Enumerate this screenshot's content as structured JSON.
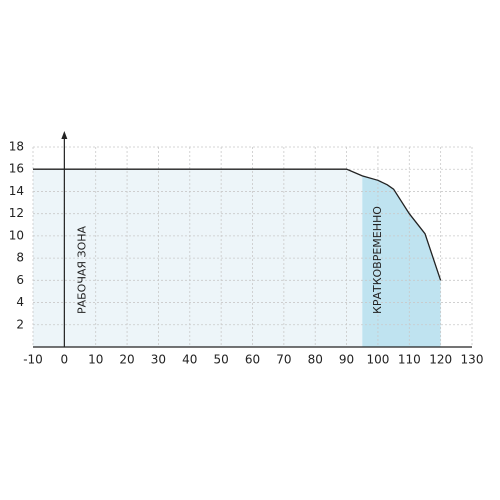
{
  "chart_data": {
    "type": "line",
    "x": [
      -10,
      90,
      95,
      100,
      103,
      105,
      110,
      115,
      120
    ],
    "values": [
      16,
      16,
      15.4,
      15,
      14.6,
      14.2,
      12,
      10.2,
      6
    ],
    "color": "#222222",
    "zones": [
      {
        "label": "РАБОЧАЯ ЗОНА",
        "from": -10,
        "to": 95,
        "color": "#edf5f9"
      },
      {
        "label": "КРАТКОВРЕМЕННО",
        "from": 95,
        "to": 120,
        "color": "#bfe3f0"
      }
    ],
    "xlim": [
      -10,
      130
    ],
    "ylim": [
      0,
      18
    ],
    "xticks": [
      -10,
      0,
      10,
      20,
      30,
      40,
      50,
      60,
      70,
      80,
      90,
      100,
      110,
      120,
      130
    ],
    "yticks": [
      2,
      4,
      6,
      8,
      10,
      12,
      14,
      16,
      18
    ],
    "grid": true
  }
}
